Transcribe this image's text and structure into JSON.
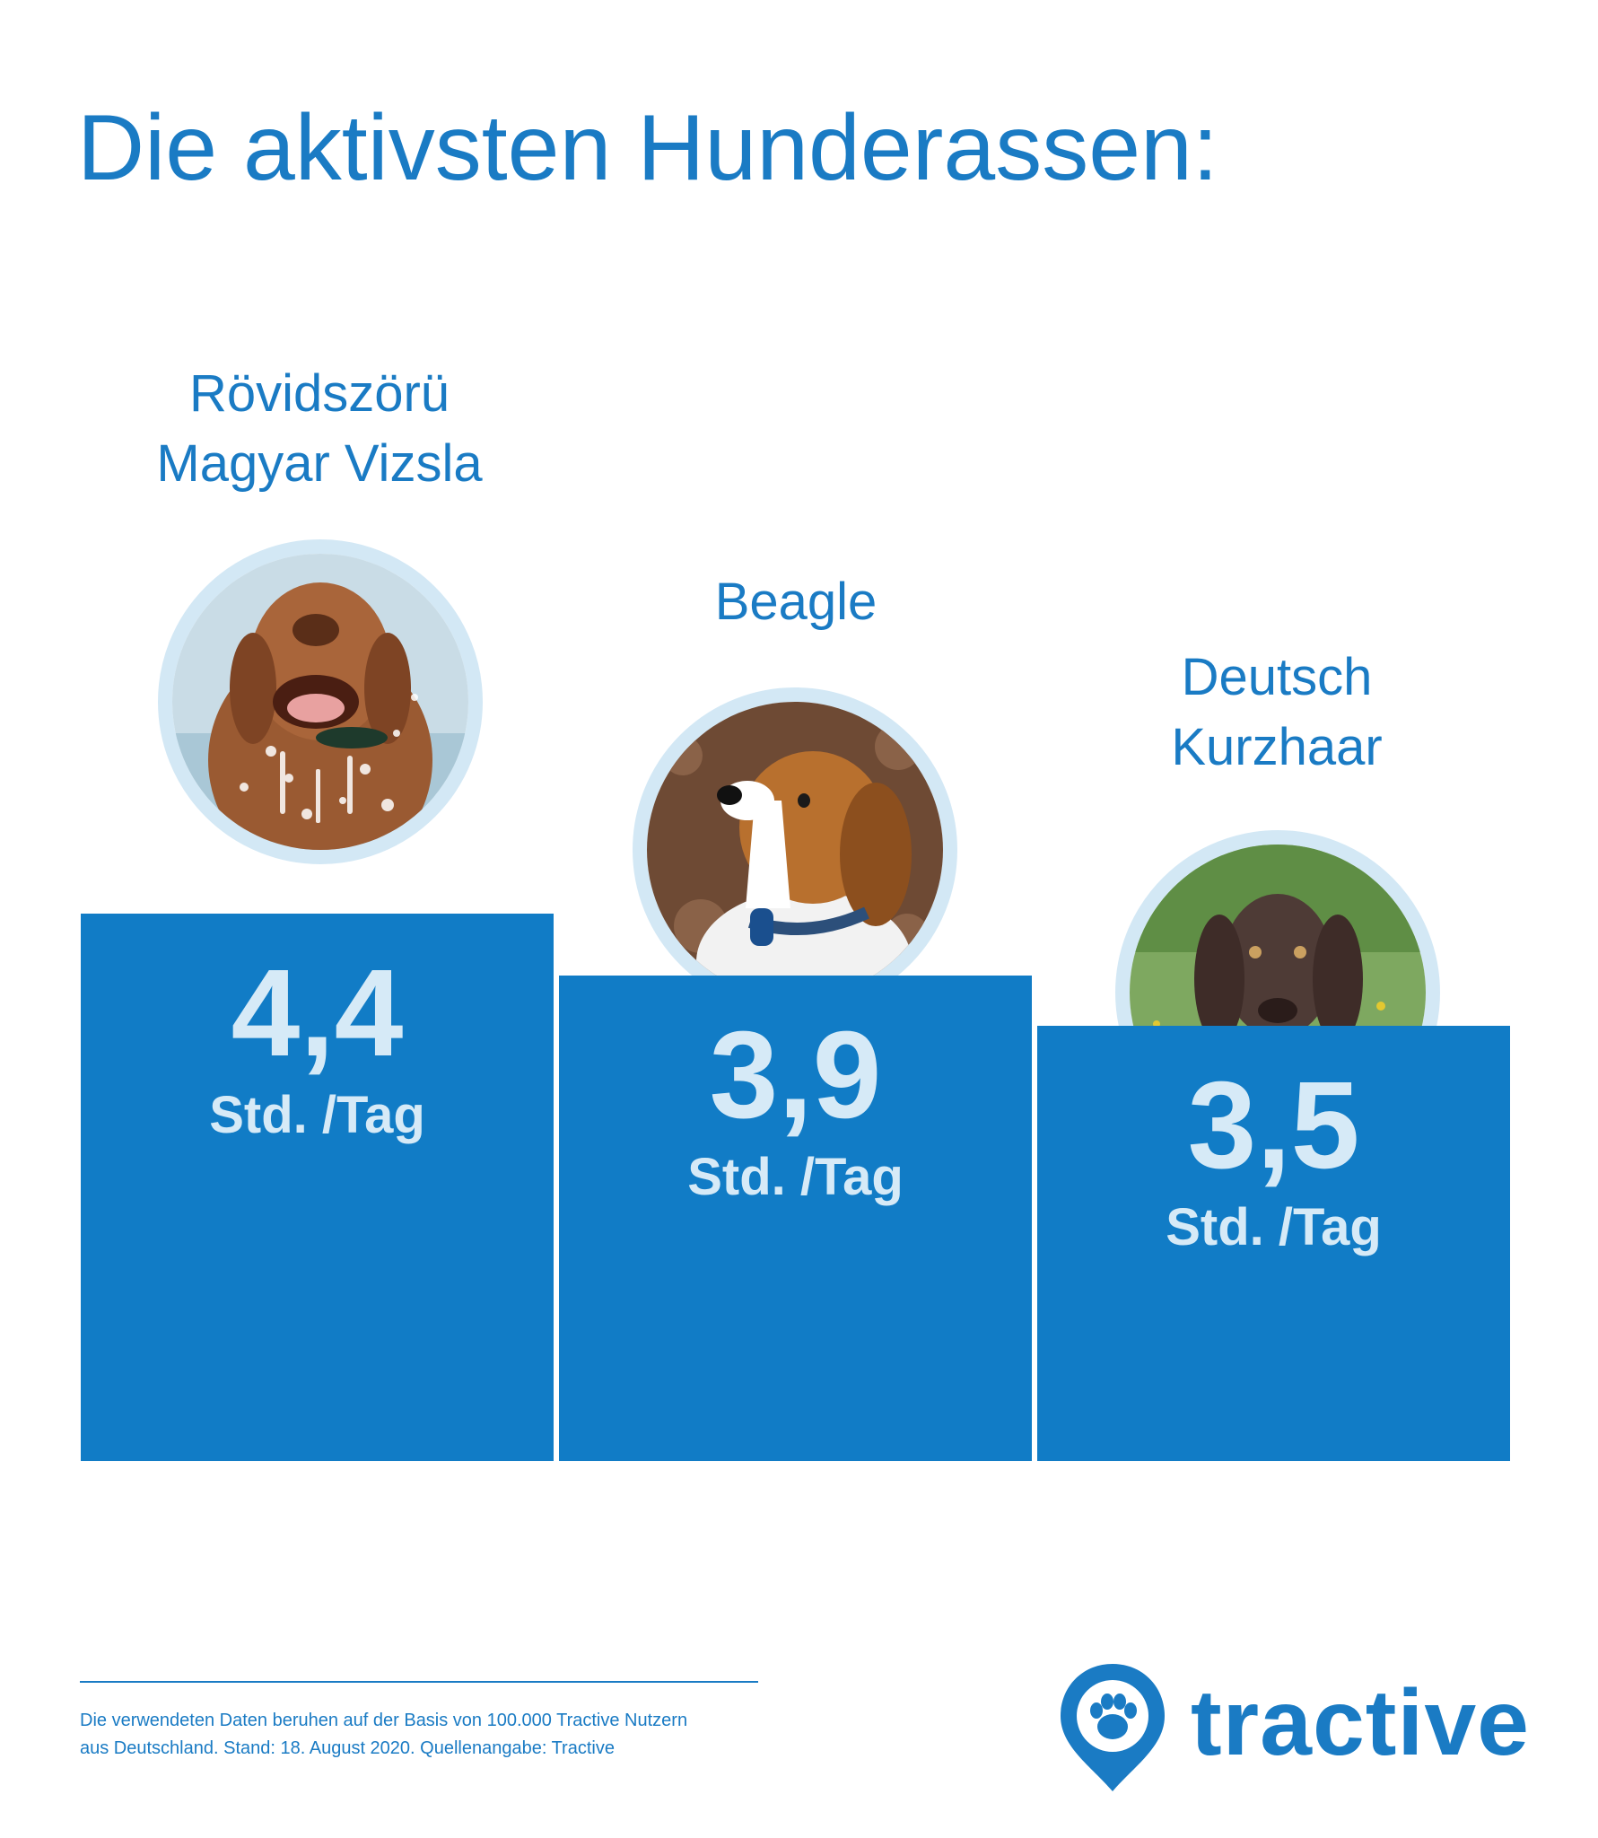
{
  "title": "Die aktivsten Hunderassen:",
  "chart_data": {
    "type": "bar",
    "title": "Die aktivsten Hunderassen:",
    "categories": [
      [
        "Rövidszörü",
        "Magyar Vizsla"
      ],
      [
        "Beagle"
      ],
      [
        "Deutsch",
        "Kurzhaar"
      ]
    ],
    "values": [
      4.4,
      3.9,
      3.5
    ],
    "value_labels": [
      "4,4",
      "3,9",
      "3,5"
    ],
    "unit": "Std. /Tag",
    "colors": {
      "bar": "#117cc6",
      "label": "#d6eaf7",
      "text": "#1a7bc4",
      "photo_ring": "#d3e8f5"
    }
  },
  "footnote": {
    "line1": "Die verwendeten Daten beruhen auf der Basis von 100.000 Tractive Nutzern",
    "line2": "aus Deutschland. Stand: 18. August 2020. Quellenangabe: Tractive"
  },
  "logo": {
    "text": "tractive",
    "icon": "paw-pin-icon"
  }
}
